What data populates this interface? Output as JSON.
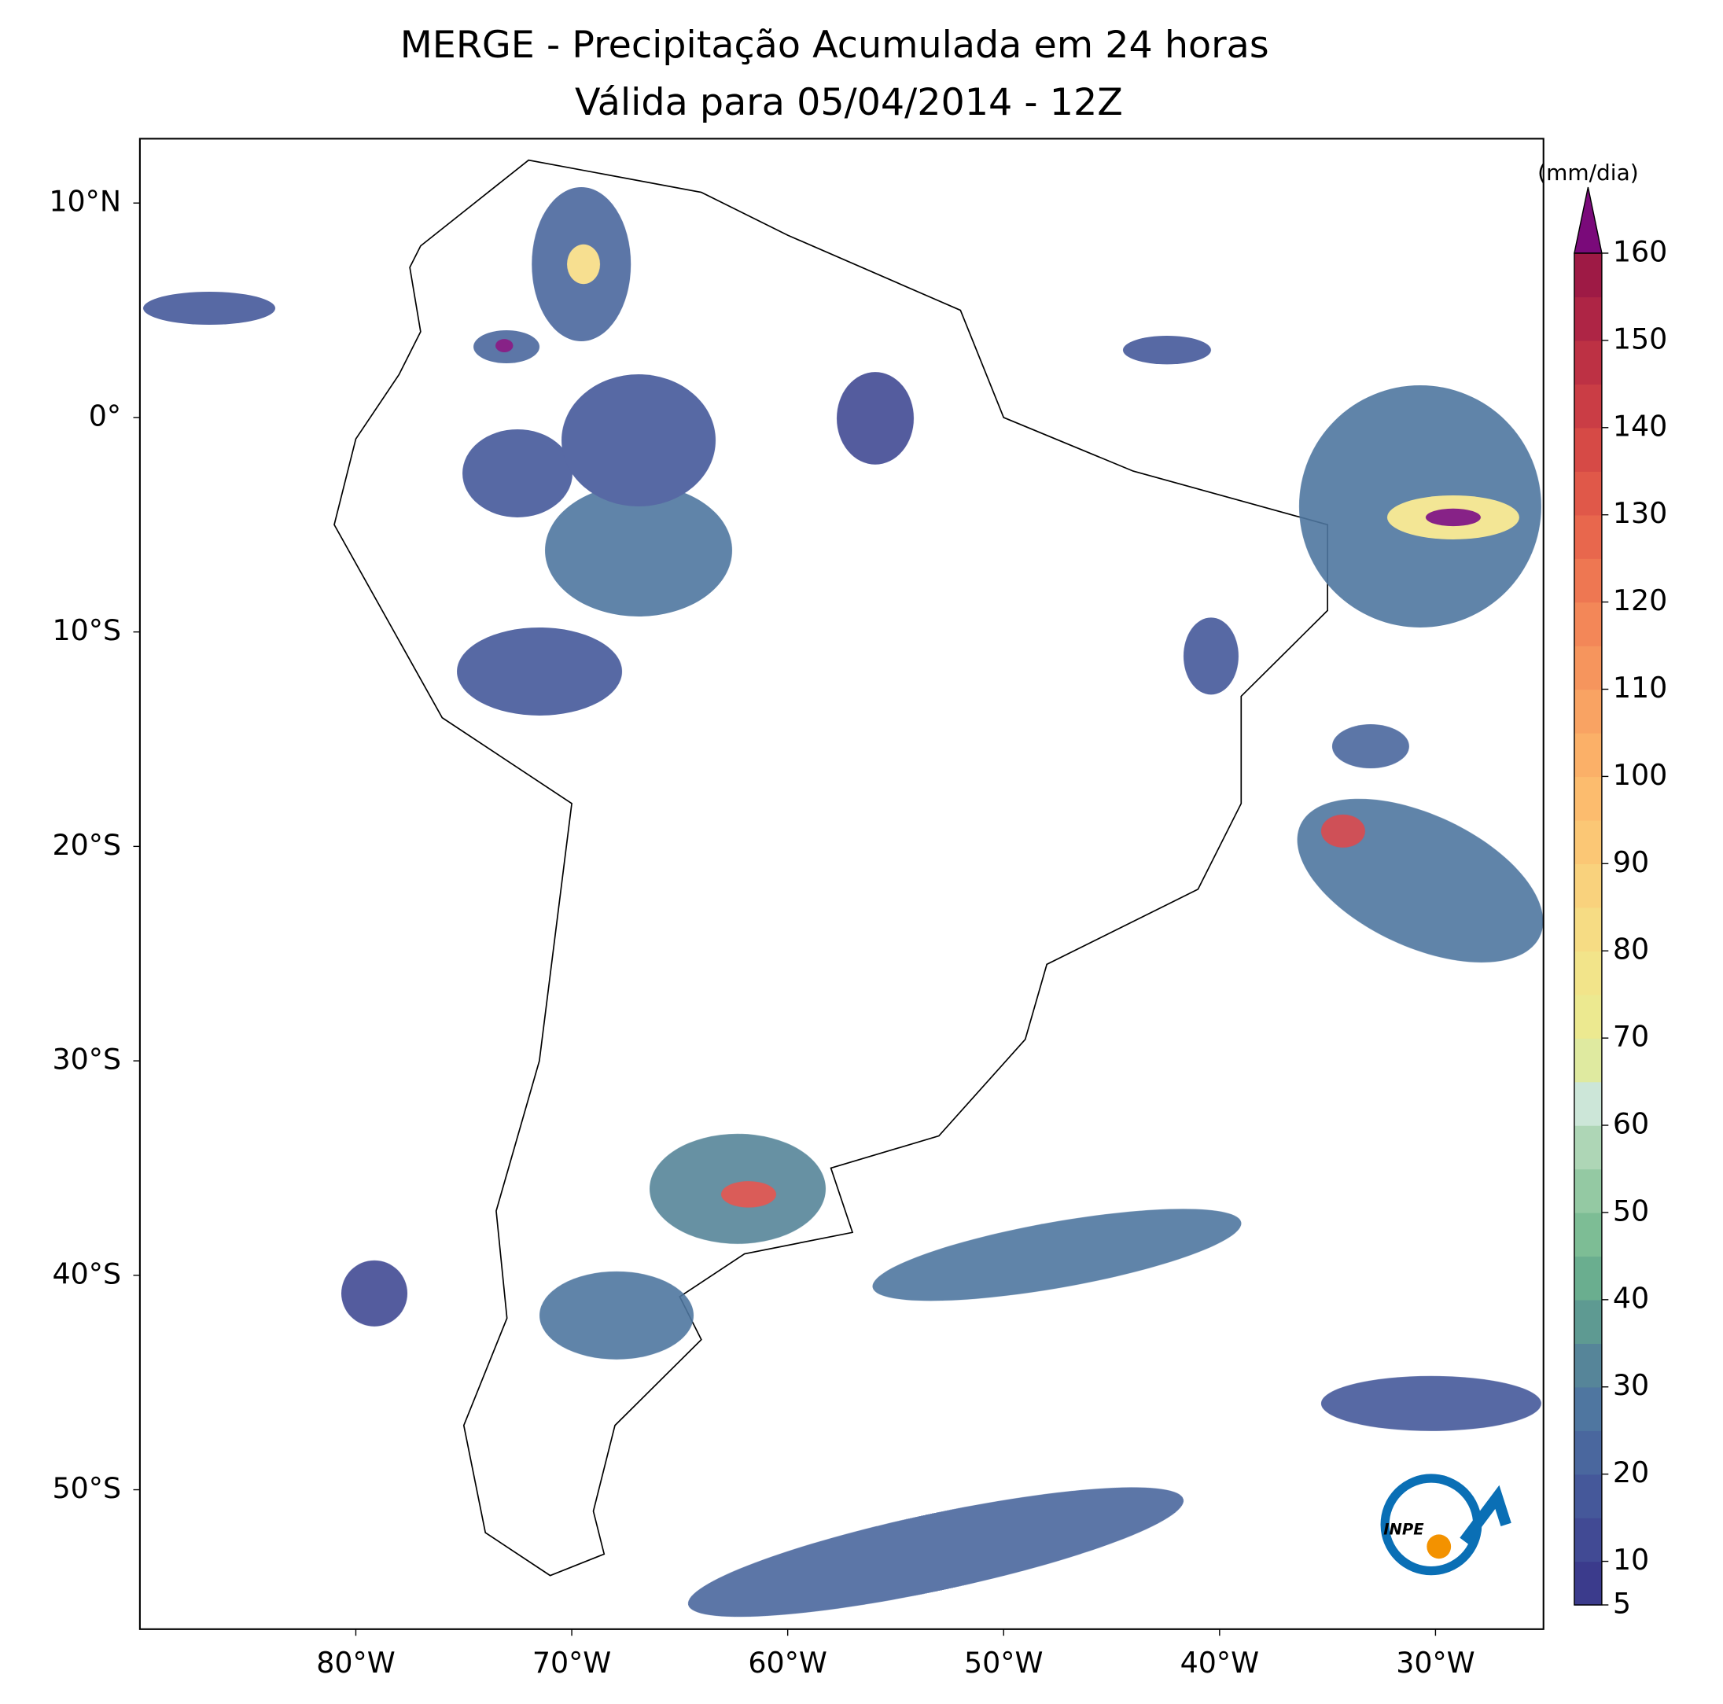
{
  "chart_data": {
    "type": "map",
    "title": "MERGE - Precipitação Acumulada em 24 horas",
    "subtitle": "Válida para 05/04/2014 - 12Z",
    "xlim": [
      -90,
      -25
    ],
    "ylim": [
      -56.5,
      13
    ],
    "xticks": [
      {
        "value": -80,
        "label": "80°W"
      },
      {
        "value": -70,
        "label": "70°W"
      },
      {
        "value": -60,
        "label": "60°W"
      },
      {
        "value": -50,
        "label": "50°W"
      },
      {
        "value": -40,
        "label": "40°W"
      },
      {
        "value": -30,
        "label": "30°W"
      }
    ],
    "yticks": [
      {
        "value": 10,
        "label": "10°N"
      },
      {
        "value": 0,
        "label": "0°"
      },
      {
        "value": -10,
        "label": "10°S"
      },
      {
        "value": -20,
        "label": "20°S"
      },
      {
        "value": -30,
        "label": "30°S"
      },
      {
        "value": -40,
        "label": "40°S"
      },
      {
        "value": -50,
        "label": "50°S"
      }
    ],
    "colorbar": {
      "label": "(mm/dia)",
      "lim": [
        5,
        160
      ],
      "ticks": [
        5,
        10,
        20,
        30,
        40,
        50,
        60,
        70,
        80,
        90,
        100,
        110,
        120,
        130,
        140,
        150,
        160
      ],
      "colors": [
        "#3b3b8c",
        "#414a94",
        "#45589a",
        "#4a679e",
        "#4f76a0",
        "#568599",
        "#5e9a92",
        "#6aae8f",
        "#7dbd95",
        "#94c9a3",
        "#aed6b6",
        "#cce6d8",
        "#dfeaa0",
        "#ece990",
        "#f2e48a",
        "#f6dc84",
        "#f9d27d",
        "#fbc775",
        "#fcbc6e",
        "#fbb068",
        "#f9a363",
        "#f6955d",
        "#f38758",
        "#ee7752",
        "#e8674d",
        "#e05849",
        "#d64a46",
        "#ca3d45",
        "#bd3144",
        "#ae2545",
        "#9e1a45"
      ],
      "extend_color": "#7a0a7a"
    },
    "logo": "INPE"
  }
}
